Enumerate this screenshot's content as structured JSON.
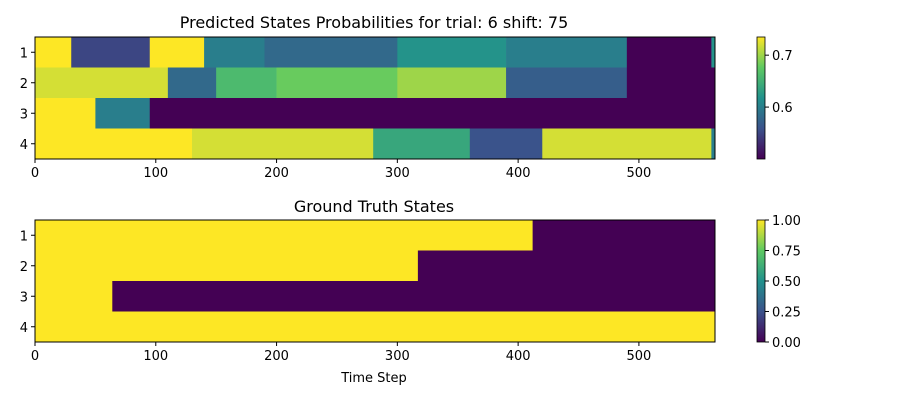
{
  "chart_data": [
    {
      "type": "heatmap",
      "title": "Predicted States Probabilities for trial: 6 shift: 75",
      "xlabel": "",
      "ylabel": "",
      "xlim": [
        0,
        563
      ],
      "xticks": [
        0,
        100,
        200,
        300,
        400,
        500
      ],
      "xtick_labels": [
        "0",
        "100",
        "200",
        "300",
        "400",
        "500"
      ],
      "rows": [
        "1",
        "2",
        "3",
        "4"
      ],
      "colorbar": {
        "ticks": [
          0.6,
          0.7
        ],
        "tick_labels": [
          "0.6",
          "0.7"
        ],
        "range": [
          0.5,
          0.735
        ],
        "colormap": "viridis"
      },
      "row_segments": [
        [
          [
            0,
            30,
            0.735
          ],
          [
            30,
            95,
            0.55
          ],
          [
            95,
            140,
            0.735
          ],
          [
            140,
            190,
            0.6
          ],
          [
            190,
            300,
            0.58
          ],
          [
            300,
            390,
            0.62
          ],
          [
            390,
            490,
            0.6
          ],
          [
            490,
            490,
            0.6
          ],
          [
            490,
            560,
            0.5
          ],
          [
            560,
            563,
            0.62
          ]
        ],
        [
          [
            0,
            110,
            0.72
          ],
          [
            110,
            150,
            0.58
          ],
          [
            150,
            200,
            0.66
          ],
          [
            200,
            300,
            0.68
          ],
          [
            300,
            390,
            0.7
          ],
          [
            390,
            490,
            0.57
          ],
          [
            490,
            563,
            0.5
          ]
        ],
        [
          [
            0,
            50,
            0.735
          ],
          [
            50,
            95,
            0.6
          ],
          [
            95,
            563,
            0.5
          ]
        ],
        [
          [
            0,
            130,
            0.735
          ],
          [
            130,
            280,
            0.72
          ],
          [
            280,
            360,
            0.64
          ],
          [
            360,
            420,
            0.56
          ],
          [
            420,
            560,
            0.72
          ],
          [
            560,
            563,
            0.6
          ]
        ]
      ]
    },
    {
      "type": "heatmap",
      "title": "Ground Truth States",
      "xlabel": "Time Step",
      "ylabel": "",
      "xlim": [
        0,
        563
      ],
      "xticks": [
        0,
        100,
        200,
        300,
        400,
        500
      ],
      "xtick_labels": [
        "0",
        "100",
        "200",
        "300",
        "400",
        "500"
      ],
      "rows": [
        "1",
        "2",
        "3",
        "4"
      ],
      "colorbar": {
        "ticks": [
          0.0,
          0.25,
          0.5,
          0.75,
          1.0
        ],
        "tick_labels": [
          "0.00",
          "0.25",
          "0.50",
          "0.75",
          "1.00"
        ],
        "range": [
          0,
          1
        ],
        "colormap": "viridis"
      },
      "row_segments": [
        [
          [
            0,
            412,
            1
          ],
          [
            412,
            563,
            0
          ]
        ],
        [
          [
            0,
            317,
            1
          ],
          [
            317,
            563,
            0
          ]
        ],
        [
          [
            0,
            64,
            1
          ],
          [
            64,
            563,
            0
          ]
        ],
        [
          [
            0,
            563,
            1
          ]
        ]
      ]
    }
  ]
}
